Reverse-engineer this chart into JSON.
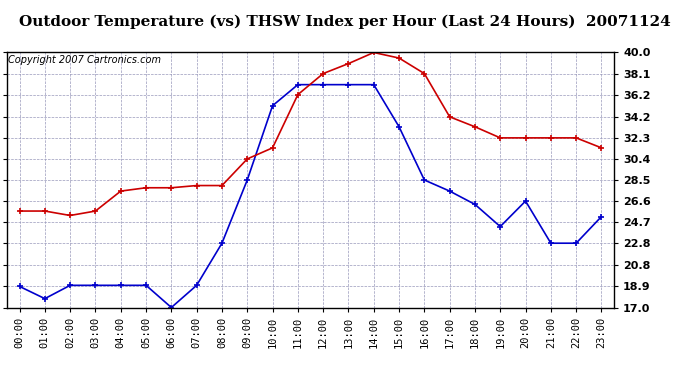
{
  "title": "Outdoor Temperature (vs) THSW Index per Hour (Last 24 Hours)  20071124",
  "copyright": "Copyright 2007 Cartronics.com",
  "hours": [
    "00:00",
    "01:00",
    "02:00",
    "03:00",
    "04:00",
    "05:00",
    "06:00",
    "07:00",
    "08:00",
    "09:00",
    "10:00",
    "11:00",
    "12:00",
    "13:00",
    "14:00",
    "15:00",
    "16:00",
    "17:00",
    "18:00",
    "19:00",
    "20:00",
    "21:00",
    "22:00",
    "23:00"
  ],
  "temp_blue": [
    18.9,
    17.8,
    19.0,
    19.0,
    19.0,
    19.0,
    17.0,
    19.0,
    22.8,
    28.5,
    35.2,
    37.1,
    37.1,
    37.1,
    37.1,
    33.3,
    28.5,
    27.5,
    26.3,
    24.3,
    26.6,
    22.8,
    22.8,
    25.2
  ],
  "thsw_red": [
    25.7,
    25.7,
    25.3,
    25.7,
    27.5,
    27.8,
    27.8,
    28.0,
    28.0,
    30.4,
    31.4,
    36.2,
    38.1,
    39.0,
    40.0,
    39.5,
    38.1,
    34.2,
    33.3,
    32.3,
    32.3,
    32.3,
    32.3,
    31.4
  ],
  "ylim": [
    17.0,
    40.0
  ],
  "yticks": [
    17.0,
    18.9,
    20.8,
    22.8,
    24.7,
    26.6,
    28.5,
    30.4,
    32.3,
    34.2,
    36.2,
    38.1,
    40.0
  ],
  "blue_color": "#0000cc",
  "red_color": "#cc0000",
  "bg_color": "#ffffff",
  "grid_color": "#9999bb",
  "title_fontsize": 11,
  "copyright_fontsize": 7,
  "tick_fontsize": 7.5,
  "ytick_fontsize": 8
}
